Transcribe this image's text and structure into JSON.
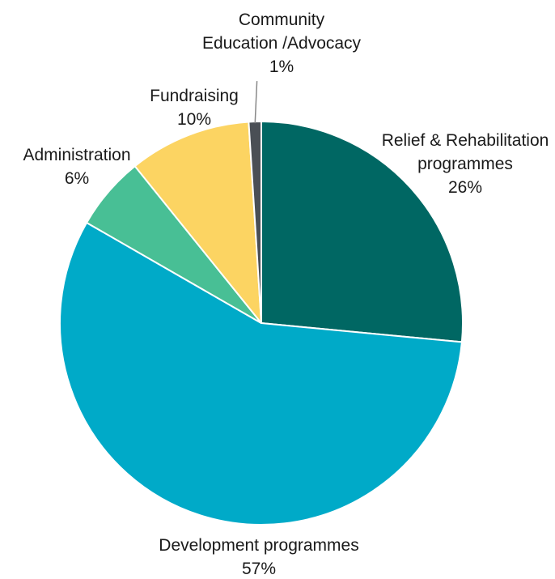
{
  "chart_data": {
    "type": "pie",
    "start_angle_deg": 0,
    "direction": "clockwise",
    "slices": [
      {
        "label_lines": [
          "Relief & Rehabilitation",
          "programmes"
        ],
        "value_label": "26%",
        "value": 26.5,
        "color": "#006763"
      },
      {
        "label_lines": [
          "Development programmes"
        ],
        "value_label": "57%",
        "value": 56.8,
        "color": "#00AAC8"
      },
      {
        "label_lines": [
          "Administration"
        ],
        "value_label": "6%",
        "value": 5.9,
        "color": "#48BF95"
      },
      {
        "label_lines": [
          "Fundraising"
        ],
        "value_label": "10%",
        "value": 9.8,
        "color": "#FCD462"
      },
      {
        "label_lines": [
          "Community",
          "Education /Advocacy"
        ],
        "value_label": "1%",
        "value": 1.0,
        "color": "#4A4F55"
      }
    ]
  }
}
